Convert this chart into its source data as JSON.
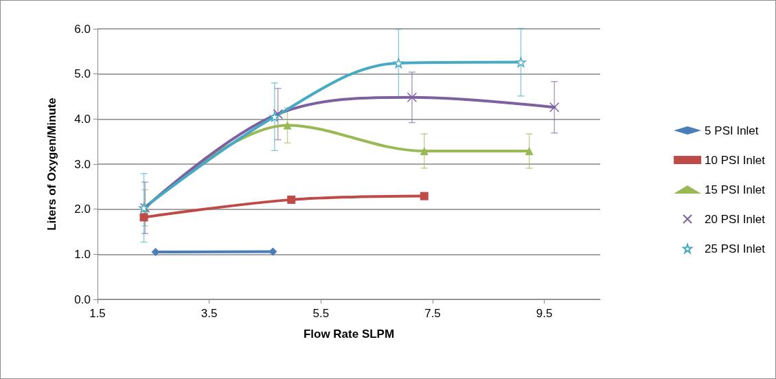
{
  "chart_data": {
    "type": "line",
    "xlabel": "Flow Rate SLPM",
    "ylabel": "Liters of Oxygen/Minute",
    "xlim": [
      1.5,
      10.5
    ],
    "xticks": [
      1.5,
      3.5,
      5.5,
      7.5,
      9.5
    ],
    "ylim": [
      0,
      6
    ],
    "yticks": [
      {
        "value": 0,
        "label": "0.0"
      },
      {
        "value": 1,
        "label": "1.0"
      },
      {
        "value": 2,
        "label": "2.0"
      },
      {
        "value": 3,
        "label": "3.0"
      },
      {
        "value": 4,
        "label": "4.0"
      },
      {
        "value": 5,
        "label": "5.0"
      },
      {
        "value": 6,
        "label": "6.0"
      }
    ],
    "grid": "y",
    "legend": "right",
    "line_style": "solid",
    "series": [
      {
        "name": "5 PSI Inlet",
        "color": "#4a7ebb",
        "marker": "diamond",
        "x": [
          2.54,
          4.64
        ],
        "values": [
          1.05,
          1.06
        ]
      },
      {
        "name": "10 PSI Inlet",
        "color": "#be4b48",
        "marker": "square",
        "x": [
          2.33,
          4.97,
          7.35
        ],
        "values": [
          1.82,
          2.21,
          2.29
        ]
      },
      {
        "name": "15 PSI Inlet",
        "color": "#98b954",
        "marker": "triangle",
        "x": [
          2.35,
          4.9,
          7.35,
          9.23
        ],
        "values": [
          2.03,
          3.86,
          3.29,
          3.29
        ],
        "errors": [
          0.4,
          0.39,
          0.38,
          0.38
        ]
      },
      {
        "name": "20 PSI Inlet",
        "color": "#7d60a0",
        "marker": "cross",
        "x": [
          2.35,
          4.73,
          7.13,
          9.68
        ],
        "values": [
          2.03,
          4.11,
          4.48,
          4.26
        ],
        "errors": [
          0.57,
          0.57,
          0.56,
          0.57
        ]
      },
      {
        "name": "25 PSI Inlet",
        "color": "#46aac5",
        "marker": "star",
        "x": [
          2.33,
          4.67,
          6.89,
          9.08
        ],
        "values": [
          2.03,
          4.05,
          5.24,
          5.26
        ],
        "errors": [
          0.76,
          0.75,
          0.75,
          0.75
        ]
      }
    ]
  }
}
